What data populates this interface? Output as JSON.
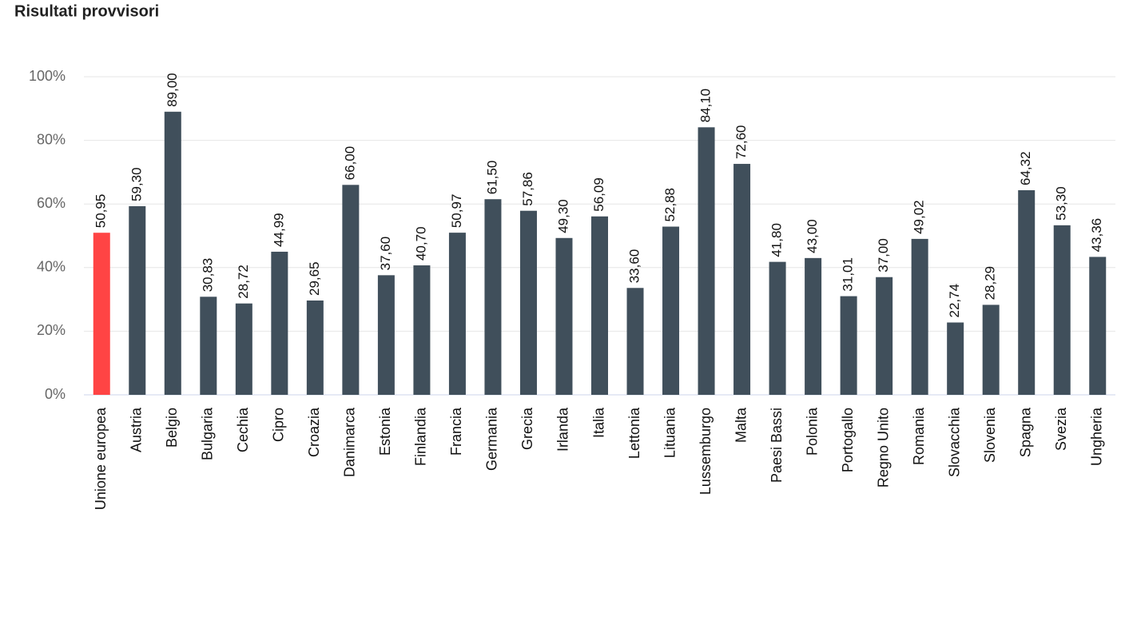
{
  "chart_data": {
    "type": "bar",
    "title": "Risultati provvisori",
    "categories": [
      "Unione europea",
      "Austria",
      "Belgio",
      "Bulgaria",
      "Cechia",
      "Cipro",
      "Croazia",
      "Danimarca",
      "Estonia",
      "Finlandia",
      "Francia",
      "Germania",
      "Grecia",
      "Irlanda",
      "Italia",
      "Lettonia",
      "Lituania",
      "Lussemburgo",
      "Malta",
      "Paesi Bassi",
      "Polonia",
      "Portogallo",
      "Regno Unito",
      "Romania",
      "Slovacchia",
      "Slovenia",
      "Spagna",
      "Svezia",
      "Ungheria"
    ],
    "values": [
      50.95,
      59.3,
      89.0,
      30.83,
      28.72,
      44.99,
      29.65,
      66.0,
      37.6,
      40.7,
      50.97,
      61.5,
      57.86,
      49.3,
      56.09,
      33.6,
      52.88,
      84.1,
      72.6,
      41.8,
      43.0,
      31.01,
      37.0,
      49.02,
      22.74,
      28.29,
      64.32,
      53.3,
      43.36
    ],
    "value_labels": [
      "50,95",
      "59,30",
      "89,00",
      "30,83",
      "28,72",
      "44,99",
      "29,65",
      "66,00",
      "37,60",
      "40,70",
      "50,97",
      "61,50",
      "57,86",
      "49,30",
      "56,09",
      "33,60",
      "52,88",
      "84,10",
      "72,60",
      "41,80",
      "43,00",
      "31,01",
      "37,00",
      "49,02",
      "22,74",
      "28,29",
      "64,32",
      "53,30",
      "43,36"
    ],
    "colors": [
      "#ff4444",
      "#404f5b",
      "#404f5b",
      "#404f5b",
      "#404f5b",
      "#404f5b",
      "#404f5b",
      "#404f5b",
      "#404f5b",
      "#404f5b",
      "#404f5b",
      "#404f5b",
      "#404f5b",
      "#404f5b",
      "#404f5b",
      "#404f5b",
      "#404f5b",
      "#404f5b",
      "#404f5b",
      "#404f5b",
      "#404f5b",
      "#404f5b",
      "#404f5b",
      "#404f5b",
      "#404f5b",
      "#404f5b",
      "#404f5b",
      "#404f5b",
      "#404f5b"
    ],
    "ylim": [
      0,
      100
    ],
    "yticks": [
      {
        "value": 0,
        "label": "0%"
      },
      {
        "value": 20,
        "label": "20%"
      },
      {
        "value": 40,
        "label": "40%"
      },
      {
        "value": 60,
        "label": "60%"
      },
      {
        "value": 80,
        "label": "80%"
      },
      {
        "value": 100,
        "label": "100%"
      }
    ],
    "grid": true
  }
}
